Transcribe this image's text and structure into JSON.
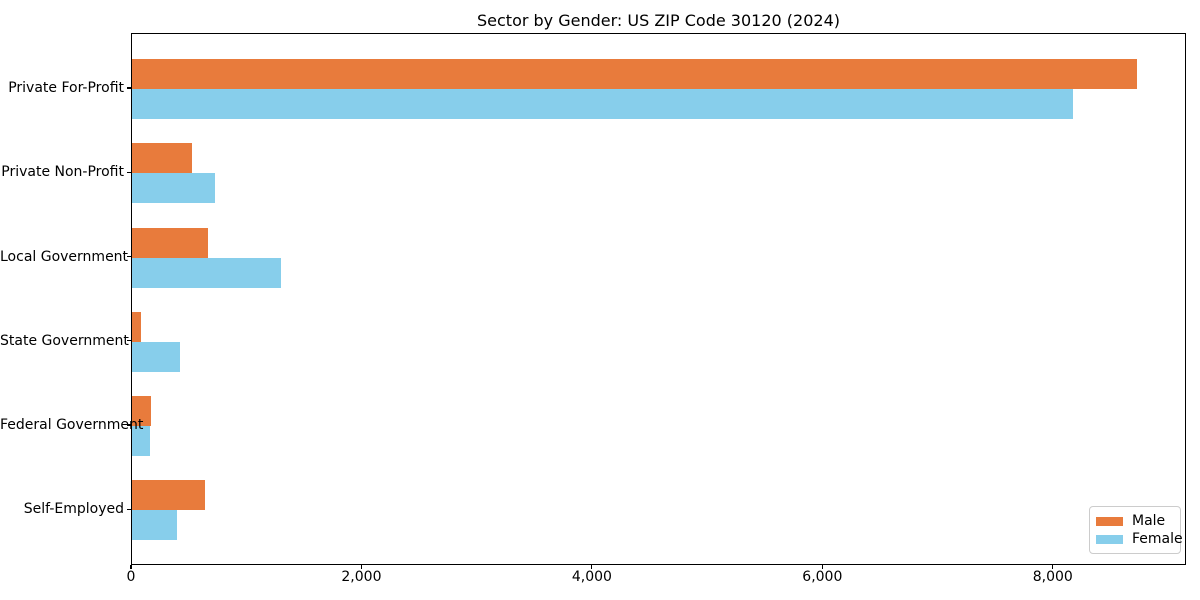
{
  "title": "Sector by Gender: US ZIP Code 30120 (2024)",
  "chart_data": {
    "type": "bar",
    "orientation": "horizontal",
    "title": "Sector by Gender: US ZIP Code 30120 (2024)",
    "categories": [
      "Private For-Profit",
      "Private Non-Profit",
      "Local Government",
      "State Government",
      "Federal Government",
      "Self-Employed"
    ],
    "series": [
      {
        "name": "Male",
        "color": "#e87b3c",
        "values": [
          8720,
          520,
          660,
          80,
          165,
          630
        ]
      },
      {
        "name": "Female",
        "color": "#87ceeb",
        "values": [
          8170,
          720,
          1290,
          420,
          155,
          390
        ]
      }
    ],
    "xlabel": "",
    "ylabel": "",
    "xlim": [
      0,
      9156
    ],
    "xticks": [
      0,
      2000,
      4000,
      6000,
      8000
    ],
    "xtick_labels": [
      "0",
      "2,000",
      "4,000",
      "6,000",
      "8,000"
    ],
    "grid": false,
    "legend": {
      "position": "lower right",
      "entries": [
        "Male",
        "Female"
      ]
    },
    "colors": {
      "male": "#e87b3c",
      "female": "#87ceeb",
      "axis": "#000000",
      "legend_border": "#cccccc",
      "background": "#ffffff"
    }
  }
}
